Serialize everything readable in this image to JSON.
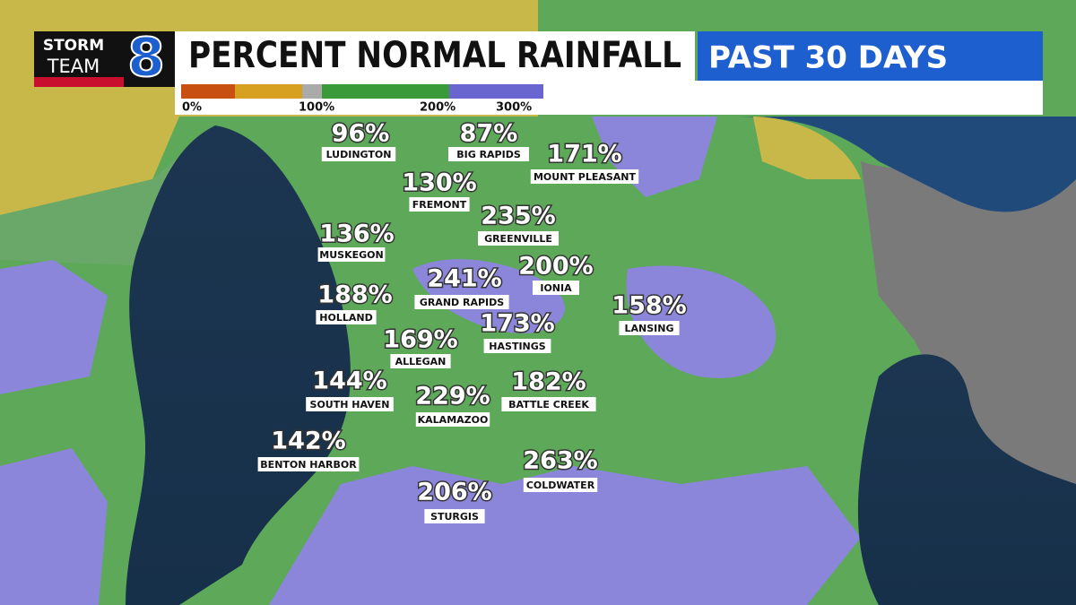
{
  "logo": {
    "line1": "STORM",
    "line2": "TEAM",
    "number": "8"
  },
  "header": {
    "title": "PERCENT NORMAL RAINFALL",
    "period": "PAST 30 DAYS"
  },
  "legend": {
    "labels": [
      "0%",
      "100%",
      "200%",
      "300%"
    ]
  },
  "cities": [
    {
      "name": "LUDINGTON",
      "value": "96%"
    },
    {
      "name": "BIG RAPIDS",
      "value": "87%"
    },
    {
      "name": "MOUNT PLEASANT",
      "value": "171%"
    },
    {
      "name": "FREMONT",
      "value": "130%"
    },
    {
      "name": "GREENVILLE",
      "value": "235%"
    },
    {
      "name": "MUSKEGON",
      "value": "136%"
    },
    {
      "name": "GRAND RAPIDS",
      "value": "241%"
    },
    {
      "name": "IONIA",
      "value": "200%"
    },
    {
      "name": "HOLLAND",
      "value": "188%"
    },
    {
      "name": "LANSING",
      "value": "158%"
    },
    {
      "name": "HASTINGS",
      "value": "173%"
    },
    {
      "name": "ALLEGAN",
      "value": "169%"
    },
    {
      "name": "SOUTH HAVEN",
      "value": "144%"
    },
    {
      "name": "KALAMAZOO",
      "value": "229%"
    },
    {
      "name": "BATTLE CREEK",
      "value": "182%"
    },
    {
      "name": "BENTON HARBOR",
      "value": "142%"
    },
    {
      "name": "COLDWATER",
      "value": "263%"
    },
    {
      "name": "STURGIS",
      "value": "206%"
    }
  ]
}
